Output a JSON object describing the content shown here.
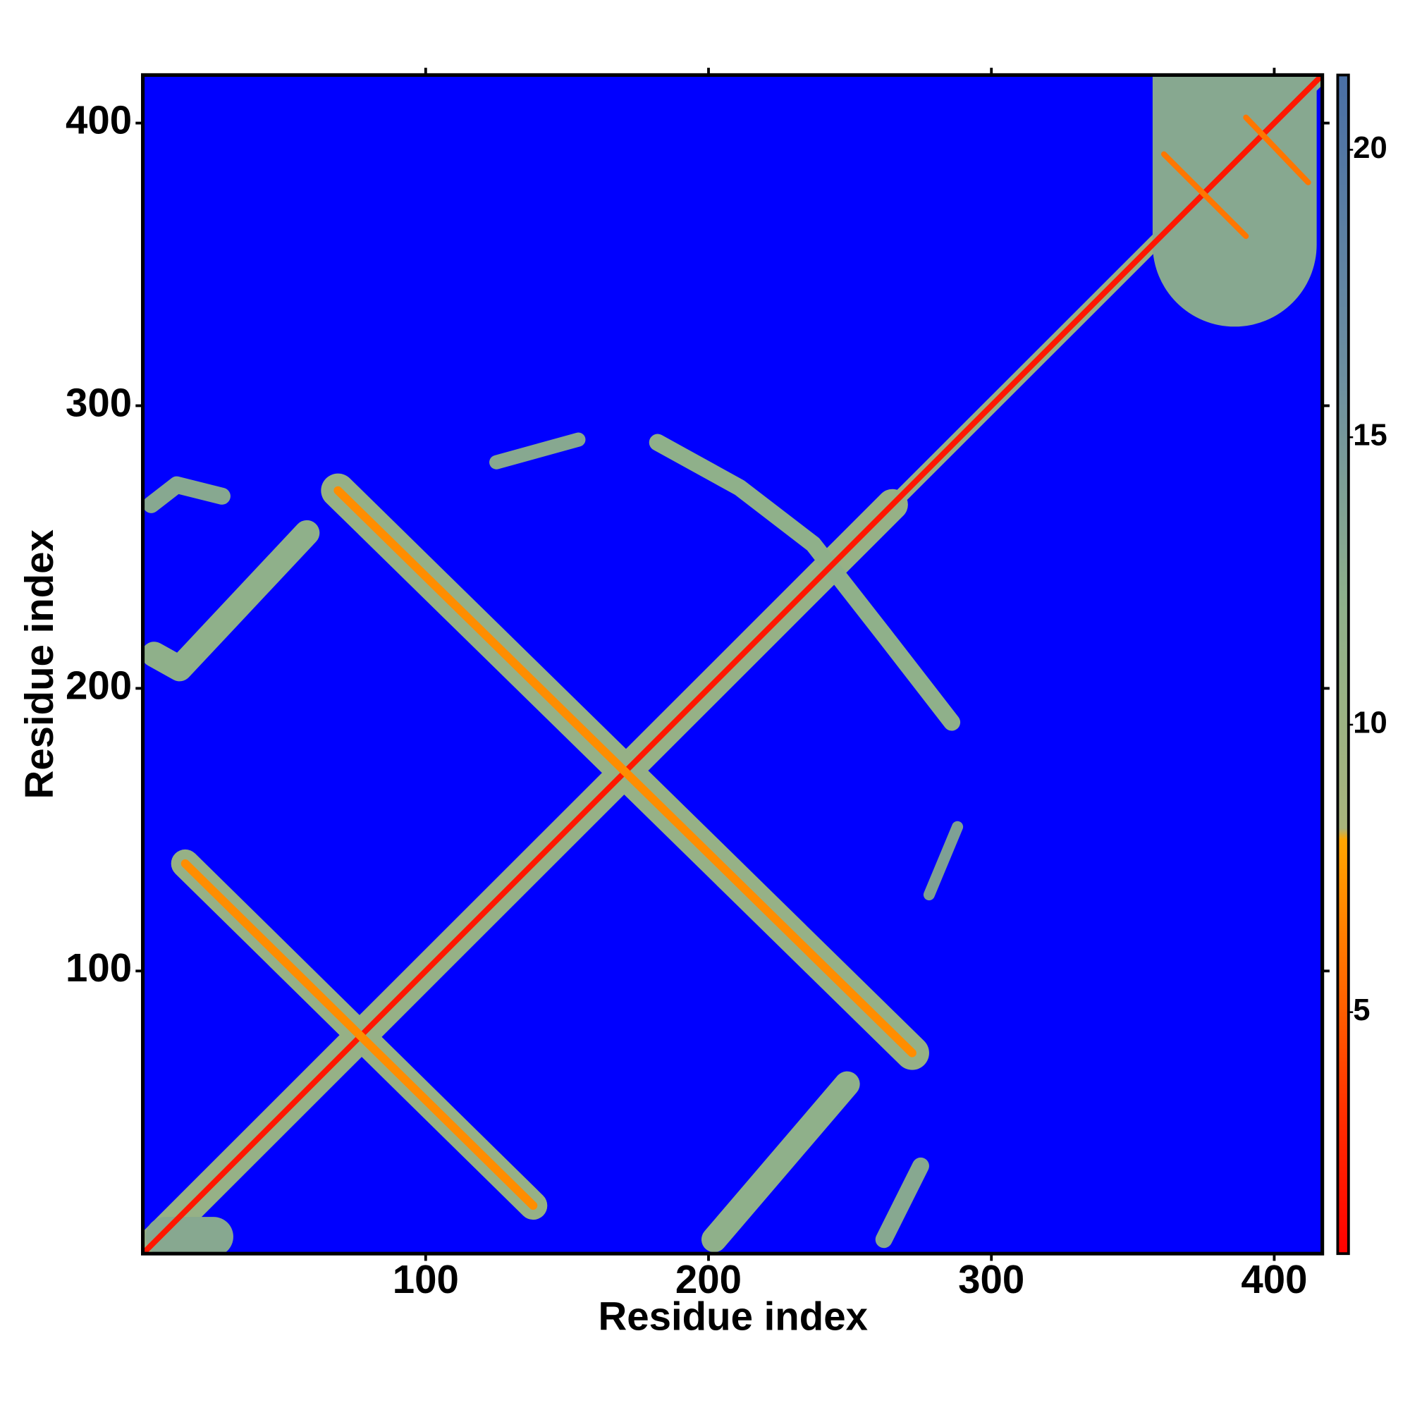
{
  "chart_data": {
    "type": "heatmap",
    "xlabel": "Residue index",
    "ylabel": "Residue index",
    "xlim": [
      0,
      417
    ],
    "ylim": [
      0,
      417
    ],
    "xticks": [
      100,
      200,
      300,
      400
    ],
    "yticks": [
      100,
      200,
      300,
      400
    ],
    "above_color": "#0000ff",
    "clim": [
      0.8,
      21.3
    ],
    "cticks": [
      5,
      10,
      15,
      20
    ],
    "colorscale": [
      {
        "value": 0.8,
        "color": "#ff0000"
      },
      {
        "value": 3,
        "color": "#ff2a00"
      },
      {
        "value": 5.5,
        "color": "#ff6a00"
      },
      {
        "value": 8,
        "color": "#ffa500"
      },
      {
        "value": 8.2,
        "color": "#a8b47c"
      },
      {
        "value": 12,
        "color": "#8fb08a"
      },
      {
        "value": 16,
        "color": "#6d8fa0"
      },
      {
        "value": 21.3,
        "color": "#4a6fa5"
      }
    ],
    "bands": [
      {
        "points": [
          [
            0,
            0
          ],
          [
            265,
            265
          ]
        ],
        "width": 11,
        "value": 11
      },
      {
        "points": [
          [
            265,
            265
          ],
          [
            417,
            417
          ]
        ],
        "width": 5,
        "value": 11
      },
      {
        "points": [
          [
            15,
            138
          ],
          [
            138,
            17
          ]
        ],
        "width": 10,
        "value": 11
      },
      {
        "points": [
          [
            69,
            270
          ],
          [
            272,
            71
          ]
        ],
        "width": 12,
        "value": 11
      },
      {
        "points": [
          [
            4,
            212
          ],
          [
            13,
            207
          ],
          [
            58,
            255
          ]
        ],
        "width": 9,
        "value": 12
      },
      {
        "points": [
          [
            3,
            265
          ],
          [
            12,
            272
          ],
          [
            28,
            268
          ]
        ],
        "width": 6,
        "value": 13
      },
      {
        "points": [
          [
            202,
            5
          ],
          [
            249,
            60
          ]
        ],
        "width": 9,
        "value": 12
      },
      {
        "points": [
          [
            262,
            5
          ],
          [
            275,
            31
          ]
        ],
        "width": 6,
        "value": 13
      },
      {
        "points": [
          [
            125,
            280
          ],
          [
            154,
            288
          ]
        ],
        "width": 5,
        "value": 13
      },
      {
        "points": [
          [
            182,
            287
          ],
          [
            211,
            271
          ],
          [
            237,
            251
          ],
          [
            262,
            219
          ],
          [
            286,
            188
          ]
        ],
        "width": 6,
        "value": 12
      },
      {
        "points": [
          [
            278,
            127
          ],
          [
            288,
            151
          ]
        ],
        "width": 4,
        "value": 14
      },
      {
        "points": [
          [
            386,
            357
          ],
          [
            386,
            417
          ]
        ],
        "width": 58,
        "value": 13
      },
      {
        "points": [
          [
            8,
            6
          ],
          [
            25,
            6
          ]
        ],
        "width": 14,
        "value": 13
      },
      {
        "points": [
          [
            0,
            0
          ],
          [
            417,
            417
          ]
        ],
        "width": 2,
        "value": 2
      },
      {
        "points": [
          [
            15,
            138
          ],
          [
            138,
            17
          ]
        ],
        "width": 3,
        "value": 7
      },
      {
        "points": [
          [
            69,
            270
          ],
          [
            272,
            71
          ]
        ],
        "width": 3,
        "value": 7
      },
      {
        "points": [
          [
            361,
            389
          ],
          [
            390,
            360
          ]
        ],
        "width": 2,
        "value": 6
      },
      {
        "points": [
          [
            390,
            402
          ],
          [
            412,
            379
          ]
        ],
        "width": 2,
        "value": 6
      }
    ]
  }
}
